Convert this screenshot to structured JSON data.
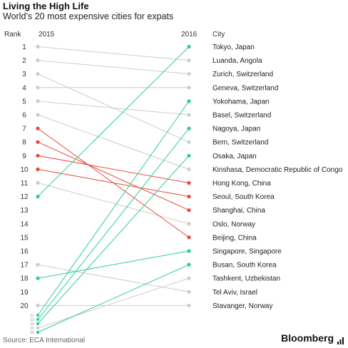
{
  "title": "Living the High Life",
  "subtitle": "World’s 20 most expensive cities for expats",
  "headers": {
    "rank": "Rank",
    "year1": "2015",
    "year2": "2016",
    "city": "City"
  },
  "source": "Source: ECA International",
  "brand": "Bloomberg",
  "colors": {
    "up": "#2ecc9a",
    "down": "#e8473b",
    "neutral": "#cccccc"
  },
  "chart_data": {
    "type": "slope",
    "x": [
      "2015",
      "2016"
    ],
    "y_axis": {
      "reversed": true,
      "ticks": [
        1,
        2,
        3,
        4,
        5,
        6,
        7,
        8,
        9,
        10,
        11,
        12,
        13,
        14,
        15,
        16,
        17,
        18,
        19,
        20
      ]
    },
    "low_ticks_2015": [
      "21",
      "23",
      "29",
      "33",
      "36"
    ],
    "series": [
      {
        "city": "Tokyo, Japan",
        "rank_2015": 12,
        "rank_2016": 1,
        "trend": "up"
      },
      {
        "city": "Luanda, Angola",
        "rank_2015": 1,
        "rank_2016": 2,
        "trend": "neutral"
      },
      {
        "city": "Zurich, Switzerland",
        "rank_2015": 2,
        "rank_2016": 3,
        "trend": "neutral"
      },
      {
        "city": "Geneva, Switzerland",
        "rank_2015": 4,
        "rank_2016": 4,
        "trend": "neutral"
      },
      {
        "city": "Yokohama, Japan",
        "rank_2015": 21,
        "rank_2016": 5,
        "trend": "up"
      },
      {
        "city": "Basel, Switzerland",
        "rank_2015": 5,
        "rank_2016": 6,
        "trend": "neutral"
      },
      {
        "city": "Nagoya, Japan",
        "rank_2015": 23,
        "rank_2016": 7,
        "trend": "up"
      },
      {
        "city": "Bern, Switzerland",
        "rank_2015": 3,
        "rank_2016": 8,
        "trend": "neutral"
      },
      {
        "city": "Osaka, Japan",
        "rank_2015": 29,
        "rank_2016": 9,
        "trend": "up"
      },
      {
        "city": "Kinshasa, Democratic Republic of Congo",
        "rank_2015": 6,
        "rank_2016": 10,
        "trend": "neutral"
      },
      {
        "city": "Hong Kong, China",
        "rank_2015": 9,
        "rank_2016": 11,
        "trend": "down"
      },
      {
        "city": "Seoul, South Korea",
        "rank_2015": 10,
        "rank_2016": 12,
        "trend": "down"
      },
      {
        "city": "Shanghai, China",
        "rank_2015": 8,
        "rank_2016": 13,
        "trend": "down"
      },
      {
        "city": "Oslo, Norway",
        "rank_2015": 11,
        "rank_2016": 14,
        "trend": "neutral"
      },
      {
        "city": "Beijing, China",
        "rank_2015": 7,
        "rank_2016": 15,
        "trend": "down"
      },
      {
        "city": "Singapore, Singapore",
        "rank_2015": 18,
        "rank_2016": 16,
        "trend": "up"
      },
      {
        "city": "Busan, South Korea",
        "rank_2015": 36,
        "rank_2016": 17,
        "trend": "up"
      },
      {
        "city": "Tashkent, Uzbekistan",
        "rank_2015": 33,
        "rank_2016": 18,
        "trend": "neutral"
      },
      {
        "city": "Tel Aviv, Israel",
        "rank_2015": 17,
        "rank_2016": 19,
        "trend": "neutral"
      },
      {
        "city": "Stavanger, Norway",
        "rank_2015": 20,
        "rank_2016": 20,
        "trend": "neutral"
      }
    ]
  }
}
